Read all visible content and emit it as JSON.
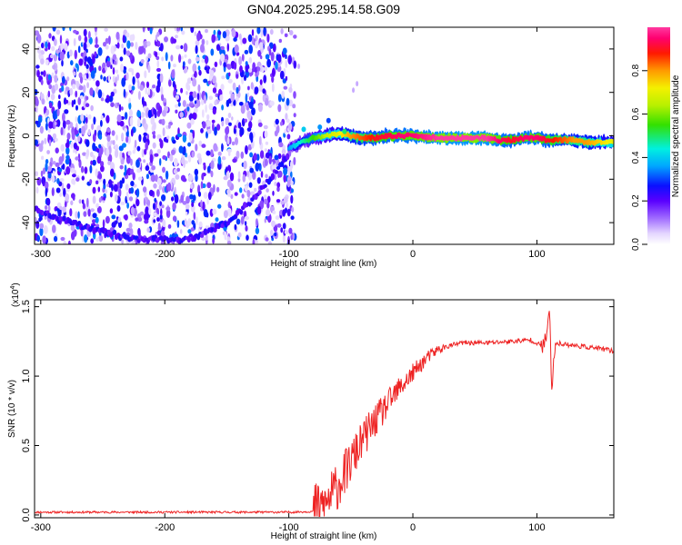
{
  "title": "GN04.2025.295.14.58.G09",
  "colors": {
    "snr_line": "#ee2222",
    "axis": "#000000",
    "background": "#ffffff"
  },
  "chart_data": [
    {
      "type": "heatmap",
      "name": "spectrogram",
      "xlabel": "Height of straight line (km)",
      "ylabel": "Frequency (Hz)",
      "xlim": [
        -305,
        162
      ],
      "ylim": [
        -50,
        50
      ],
      "xticks": [
        -300,
        -200,
        -100,
        0,
        100
      ],
      "yticks": [
        -40,
        -20,
        0,
        20,
        40
      ],
      "tone": {
        "x": [
          -100,
          -90,
          -80,
          -70,
          -60,
          -50,
          -40,
          -30,
          -20,
          -10,
          0,
          20,
          40,
          60,
          70,
          80,
          90,
          100,
          110,
          120,
          130,
          140,
          150,
          162
        ],
        "freq": [
          -6,
          -3,
          -1,
          0,
          1,
          0,
          -1,
          -1,
          0,
          0,
          0,
          -1,
          -1,
          -1,
          -2,
          -2,
          -1,
          -1,
          -2,
          -2,
          -2,
          -3,
          -3,
          -3
        ],
        "amp": [
          0.35,
          0.45,
          0.55,
          0.65,
          0.7,
          0.8,
          0.85,
          0.9,
          0.92,
          0.95,
          0.95,
          1.0,
          1.0,
          1.0,
          0.95,
          0.9,
          0.95,
          0.95,
          0.9,
          0.85,
          0.8,
          0.8,
          0.75,
          0.7
        ]
      },
      "chirp_ridge": {
        "x": [
          -305,
          -290,
          -270,
          -250,
          -230,
          -210,
          -190,
          -170,
          -150,
          -130,
          -115,
          -105,
          -100
        ],
        "freq": [
          -33,
          -37,
          -41,
          -44,
          -47,
          -48,
          -48,
          -46,
          -40,
          -30,
          -20,
          -12,
          -8
        ]
      },
      "noise_region_x": [
        -305,
        -95
      ]
    },
    {
      "type": "colorbar",
      "name": "amplitude-colorbar",
      "label": "Normalized spectral amplitude",
      "range": [
        0,
        1
      ],
      "ticks": [
        0.0,
        0.2,
        0.4,
        0.6,
        0.8
      ],
      "tick_labels": [
        "0.0",
        "0.2",
        "0.4",
        "0.6",
        "0.8"
      ]
    },
    {
      "type": "line",
      "name": "snr",
      "xlabel": "Height of straight line (km)",
      "ylabel": "SNR (10 * v/v)",
      "multiplier_label": "(x10",
      "multiplier_exp": "4",
      "multiplier_close": ")",
      "xlim": [
        -305,
        162
      ],
      "ylim": [
        -0.02,
        1.55
      ],
      "xticks": [
        -300,
        -200,
        -100,
        0,
        100
      ],
      "yticks": [
        0.0,
        0.5,
        1.0,
        1.5
      ],
      "ytick_labels": [
        "0.0",
        "0.5",
        "1.0",
        "1.5"
      ],
      "series": [
        {
          "name": "SNR",
          "x": [
            -305,
            -200,
            -100,
            -80,
            -70,
            -60,
            -50,
            -40,
            -30,
            -20,
            -10,
            0,
            10,
            20,
            30,
            40,
            60,
            80,
            95,
            100,
            105,
            108,
            110,
            112,
            115,
            130,
            150,
            162
          ],
          "y": [
            0.02,
            0.02,
            0.02,
            0.025,
            0.08,
            0.22,
            0.38,
            0.55,
            0.68,
            0.8,
            0.92,
            1.02,
            1.12,
            1.19,
            1.22,
            1.24,
            1.24,
            1.25,
            1.26,
            1.24,
            1.2,
            1.3,
            1.52,
            0.9,
            1.24,
            1.22,
            1.2,
            1.18
          ]
        }
      ]
    }
  ]
}
